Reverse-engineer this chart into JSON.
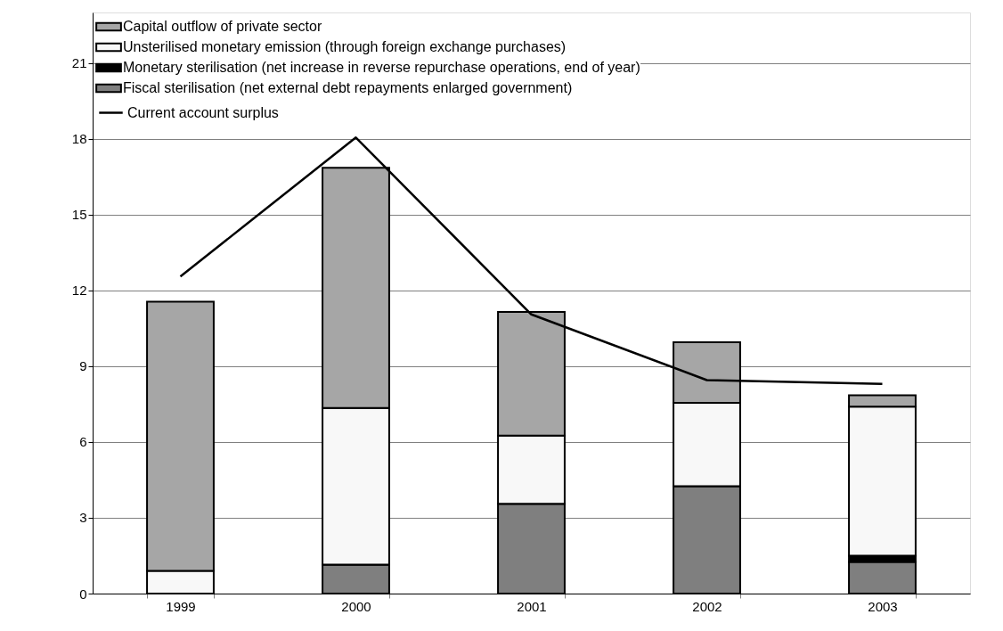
{
  "chart_data": {
    "type": "bar",
    "stacked": true,
    "categories": [
      "1999",
      "2000",
      "2001",
      "2002",
      "2003"
    ],
    "series": [
      {
        "name": "Fiscal sterilisation (net external debt repayments enlarged government)",
        "color": "#7f7f7f",
        "values": [
          0,
          1.15,
          3.55,
          4.25,
          1.25
        ]
      },
      {
        "name": "Monetary sterilisation (net increase in reverse repurchase operations, end of year)",
        "color": "#000000",
        "values": [
          0,
          0,
          0,
          0,
          0.25
        ]
      },
      {
        "name": "Unsterilised monetary emission (through foreign exchange purchases)",
        "color": "#f8f8f8",
        "values": [
          0.9,
          6.2,
          2.7,
          3.3,
          5.9
        ]
      },
      {
        "name": "Capital outflow of private sector",
        "color": "#a6a6a6",
        "values": [
          10.65,
          9.5,
          4.9,
          2.4,
          0.45
        ]
      },
      {
        "name": "Current account surplus",
        "type": "line",
        "color": "#000000",
        "values": [
          12.55,
          18.05,
          11.05,
          8.45,
          8.3
        ]
      }
    ],
    "ylim": [
      0,
      23
    ],
    "yticks": [
      0,
      3,
      6,
      9,
      12,
      15,
      18,
      21
    ],
    "grid": "y",
    "legend": "top left",
    "marker": "none",
    "line_style": "solid"
  }
}
